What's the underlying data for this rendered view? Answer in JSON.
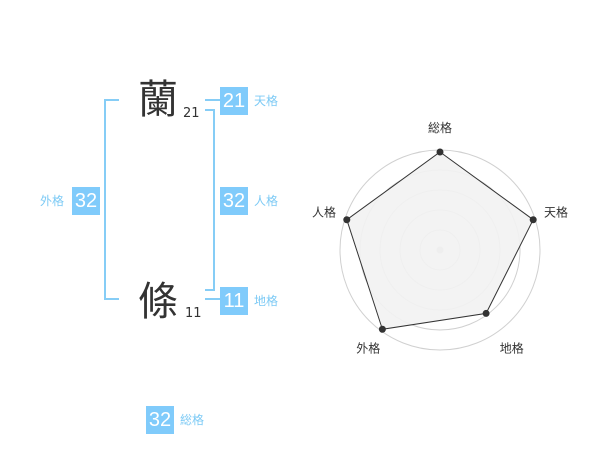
{
  "name": {
    "chars": [
      {
        "char": "蘭",
        "strokes": "21"
      },
      {
        "char": "條",
        "strokes": "11"
      }
    ]
  },
  "fortunes": {
    "tenkaku": {
      "label": "天格",
      "value": "21"
    },
    "jinkaku": {
      "label": "人格",
      "value": "32"
    },
    "chikaku": {
      "label": "地格",
      "value": "11"
    },
    "gaikaku": {
      "label": "外格",
      "value": "32"
    },
    "soukaku": {
      "label": "総格",
      "value": "32"
    }
  },
  "colors": {
    "accent": "#80cbfb",
    "label": "#7ccaf5",
    "radar_fill": "#f2f2f2",
    "radar_line": "#333333"
  },
  "chart_data": {
    "type": "radar",
    "categories": [
      "総格",
      "天格",
      "地格",
      "外格",
      "人格"
    ],
    "values": [
      5,
      5,
      4,
      5,
      5
    ],
    "range": [
      0,
      5
    ],
    "grid": "circles"
  }
}
